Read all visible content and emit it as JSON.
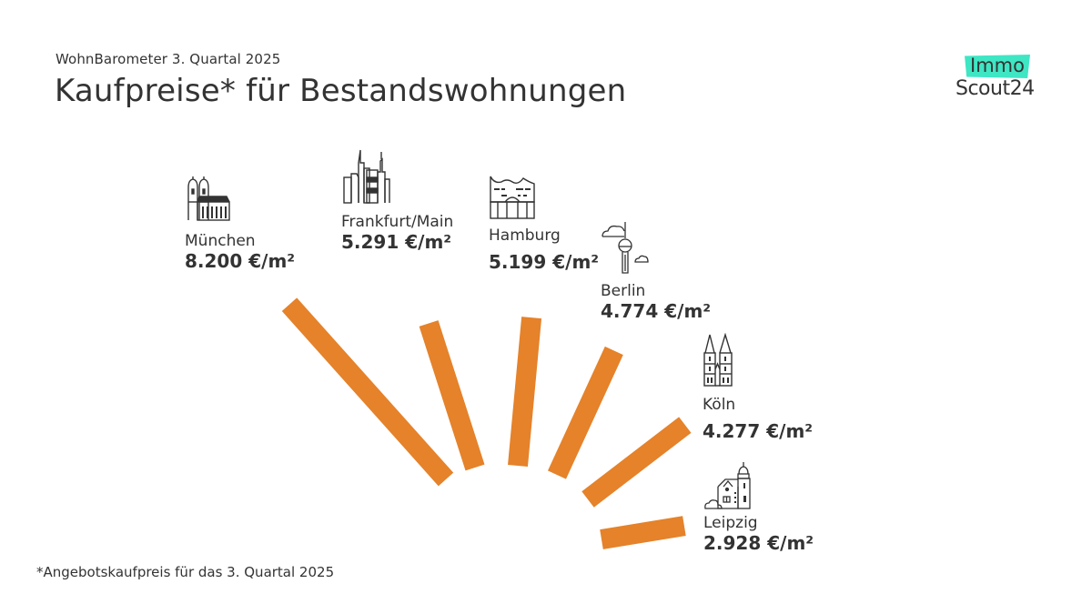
{
  "header": {
    "subtitle": "WohnBarometer 3. Quartal 2025",
    "title": "Kaufpreise* für Bestandswohnungen"
  },
  "logo": {
    "line1": "Immo",
    "line2": "Scout24",
    "accent_color": "#3EE6C4"
  },
  "footnote": "*Angebotskaufpreis für das 3. Quartal 2025",
  "chart_data": {
    "type": "bar",
    "layout": "radial",
    "title": "Kaufpreise* für Bestandswohnungen",
    "subtitle": "WohnBarometer 3. Quartal 2025",
    "unit": "€/m²",
    "bar_color": "#E5822A",
    "categories": [
      "München",
      "Frankfurt/Main",
      "Hamburg",
      "Berlin",
      "Köln",
      "Leipzig"
    ],
    "values": [
      8200,
      5291,
      5199,
      4774,
      4277,
      2928
    ],
    "labels": [
      "8.200 €/m²",
      "5.291 €/m²",
      "5.199 €/m²",
      "4.774 €/m²",
      "4.277 €/m²",
      "2.928 €/m²"
    ],
    "icons": [
      "frauenkirche-icon",
      "skyline-icon",
      "elbphilharmonie-icon",
      "tv-tower-icon",
      "cathedral-icon",
      "church-house-icon"
    ],
    "xlabel": "",
    "ylabel": "",
    "legend": "none",
    "grid": false
  }
}
